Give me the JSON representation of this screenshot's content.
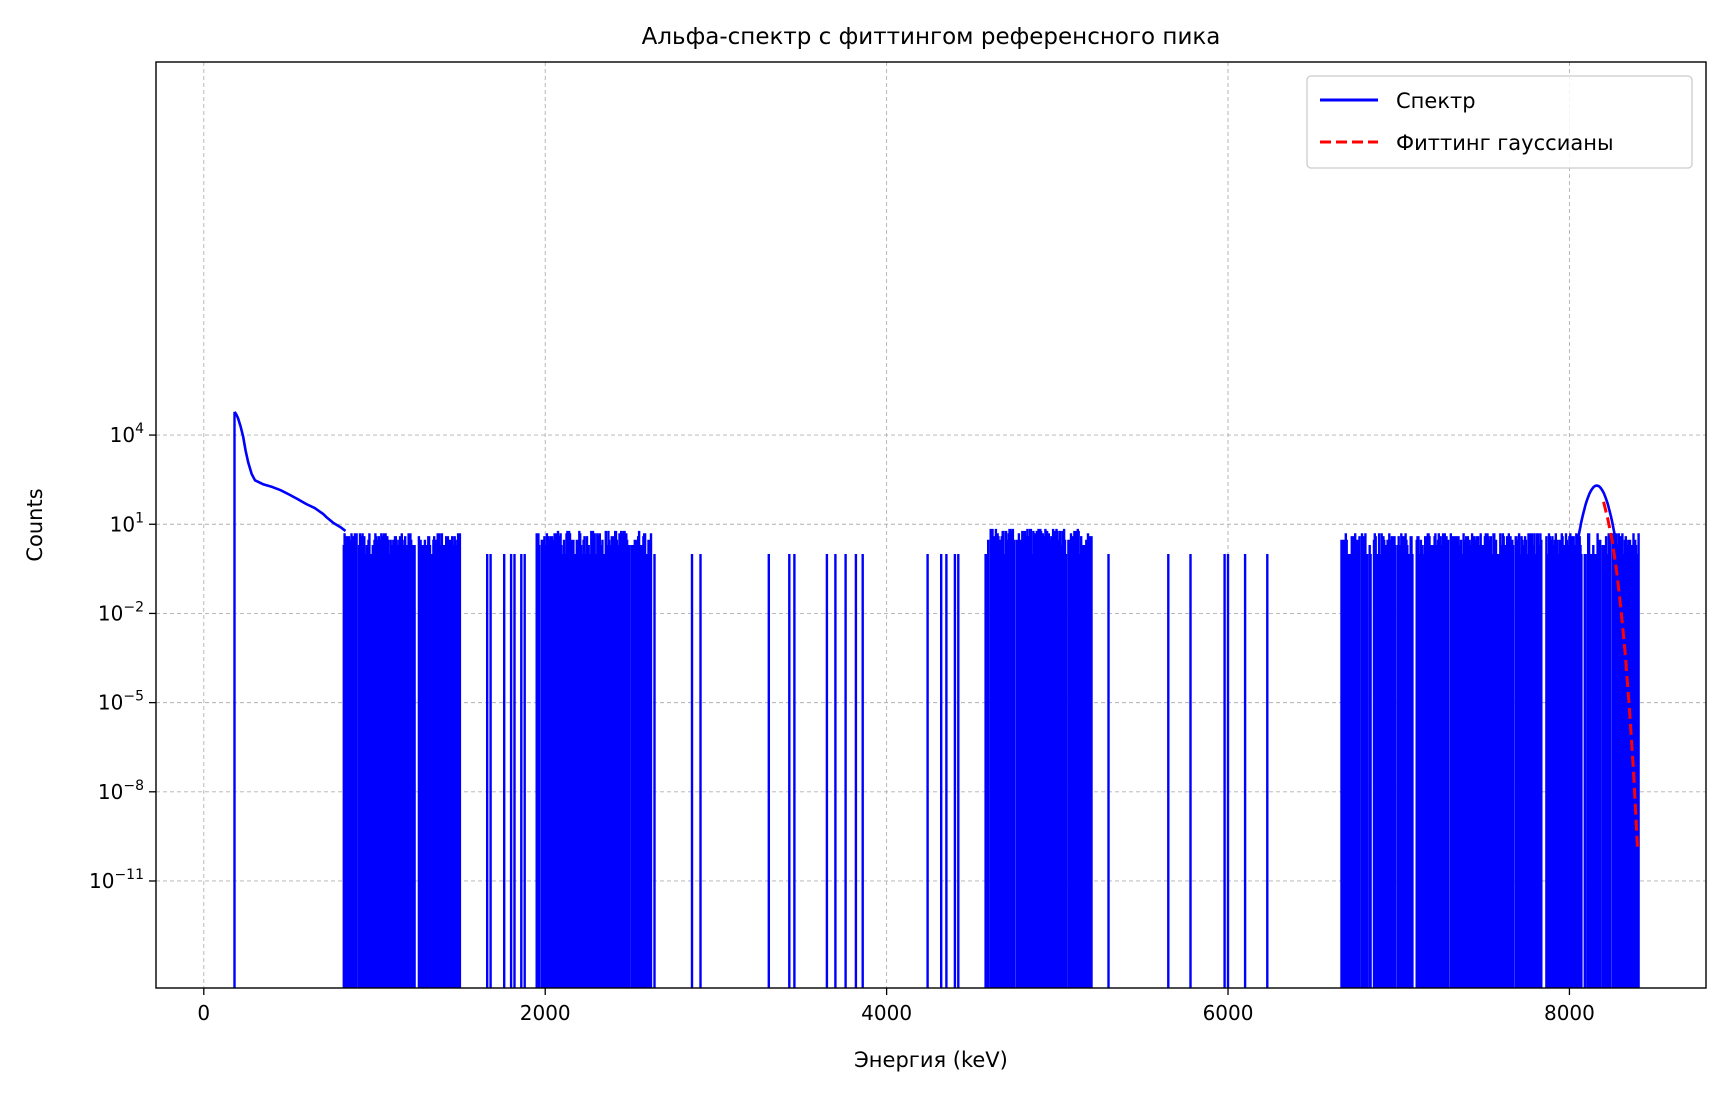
{
  "chart_data": {
    "type": "line",
    "title": "Альфа-спектр с фиттингом референсного пика",
    "xlabel": "Энергия (keV)",
    "ylabel": "Counts",
    "xlim": [
      -280,
      8800
    ],
    "ylim_log10": [
      -14.6,
      16.55
    ],
    "y_scale": "log",
    "grid": true,
    "legend_position": "upper right",
    "x_ticks": [
      {
        "value": 0,
        "label": "0"
      },
      {
        "value": 2000,
        "label": "2000"
      },
      {
        "value": 4000,
        "label": "4000"
      },
      {
        "value": 6000,
        "label": "6000"
      },
      {
        "value": 8000,
        "label": "8000"
      }
    ],
    "y_ticks": [
      {
        "exp": 4,
        "base": "10",
        "sup": "4"
      },
      {
        "exp": 1,
        "base": "10",
        "sup": "1"
      },
      {
        "exp": -2,
        "base": "10",
        "sup": "−2"
      },
      {
        "exp": -5,
        "base": "10",
        "sup": "−5"
      },
      {
        "exp": -8,
        "base": "10",
        "sup": "−8"
      },
      {
        "exp": -11,
        "base": "10",
        "sup": "−11"
      }
    ],
    "series": [
      {
        "name": "Спектр",
        "color": "#0000ff",
        "style": "solid",
        "envelope": {
          "x": [
            180,
            190,
            200,
            215,
            230,
            245,
            260,
            280,
            300,
            350,
            400,
            450,
            500,
            550,
            600,
            650,
            700,
            720,
            760,
            800,
            830
          ],
          "y": [
            60000,
            50000,
            38000,
            20000,
            9000,
            3000,
            1200,
            500,
            300,
            220,
            180,
            140,
            100,
            70,
            48,
            35,
            22,
            17,
            11,
            8,
            6
          ]
        },
        "noise_bursts": [
          {
            "x": [
              820,
              1500
            ],
            "count_levels": [
              1,
              2,
              3,
              4,
              5
            ]
          },
          {
            "x": [
              1950,
              2620
            ],
            "count_levels": [
              1,
              2,
              3,
              4,
              5,
              6
            ]
          },
          {
            "x": [
              4580,
              5200
            ],
            "count_levels": [
              1,
              2,
              3,
              4,
              5,
              6,
              7
            ]
          },
          {
            "x": [
              6660,
              8410
            ],
            "count_levels": [
              1,
              2,
              3,
              4,
              5
            ]
          }
        ],
        "isolated_counts_x": [
          1660,
          1680,
          1760,
          1800,
          1820,
          1860,
          1880,
          2640,
          2860,
          2910,
          3310,
          3430,
          3460,
          3650,
          3700,
          3760,
          3820,
          3860,
          4240,
          4320,
          4350,
          4400,
          4420,
          5300,
          5650,
          5780,
          5980,
          6000,
          6100,
          6230
        ],
        "peak": {
          "center": 8160,
          "sigma": 38,
          "height": 200
        }
      },
      {
        "name": "Фиттинг гауссианы",
        "color": "#ff0000",
        "style": "dashed",
        "x": [
          8200,
          8225,
          8250,
          8275,
          8300,
          8325,
          8350,
          8375,
          8400
        ],
        "y": [
          57,
          15,
          2.9,
          0.3,
          0.018,
          0.0006,
          8e-06,
          5e-08,
          1e-10
        ]
      }
    ]
  }
}
